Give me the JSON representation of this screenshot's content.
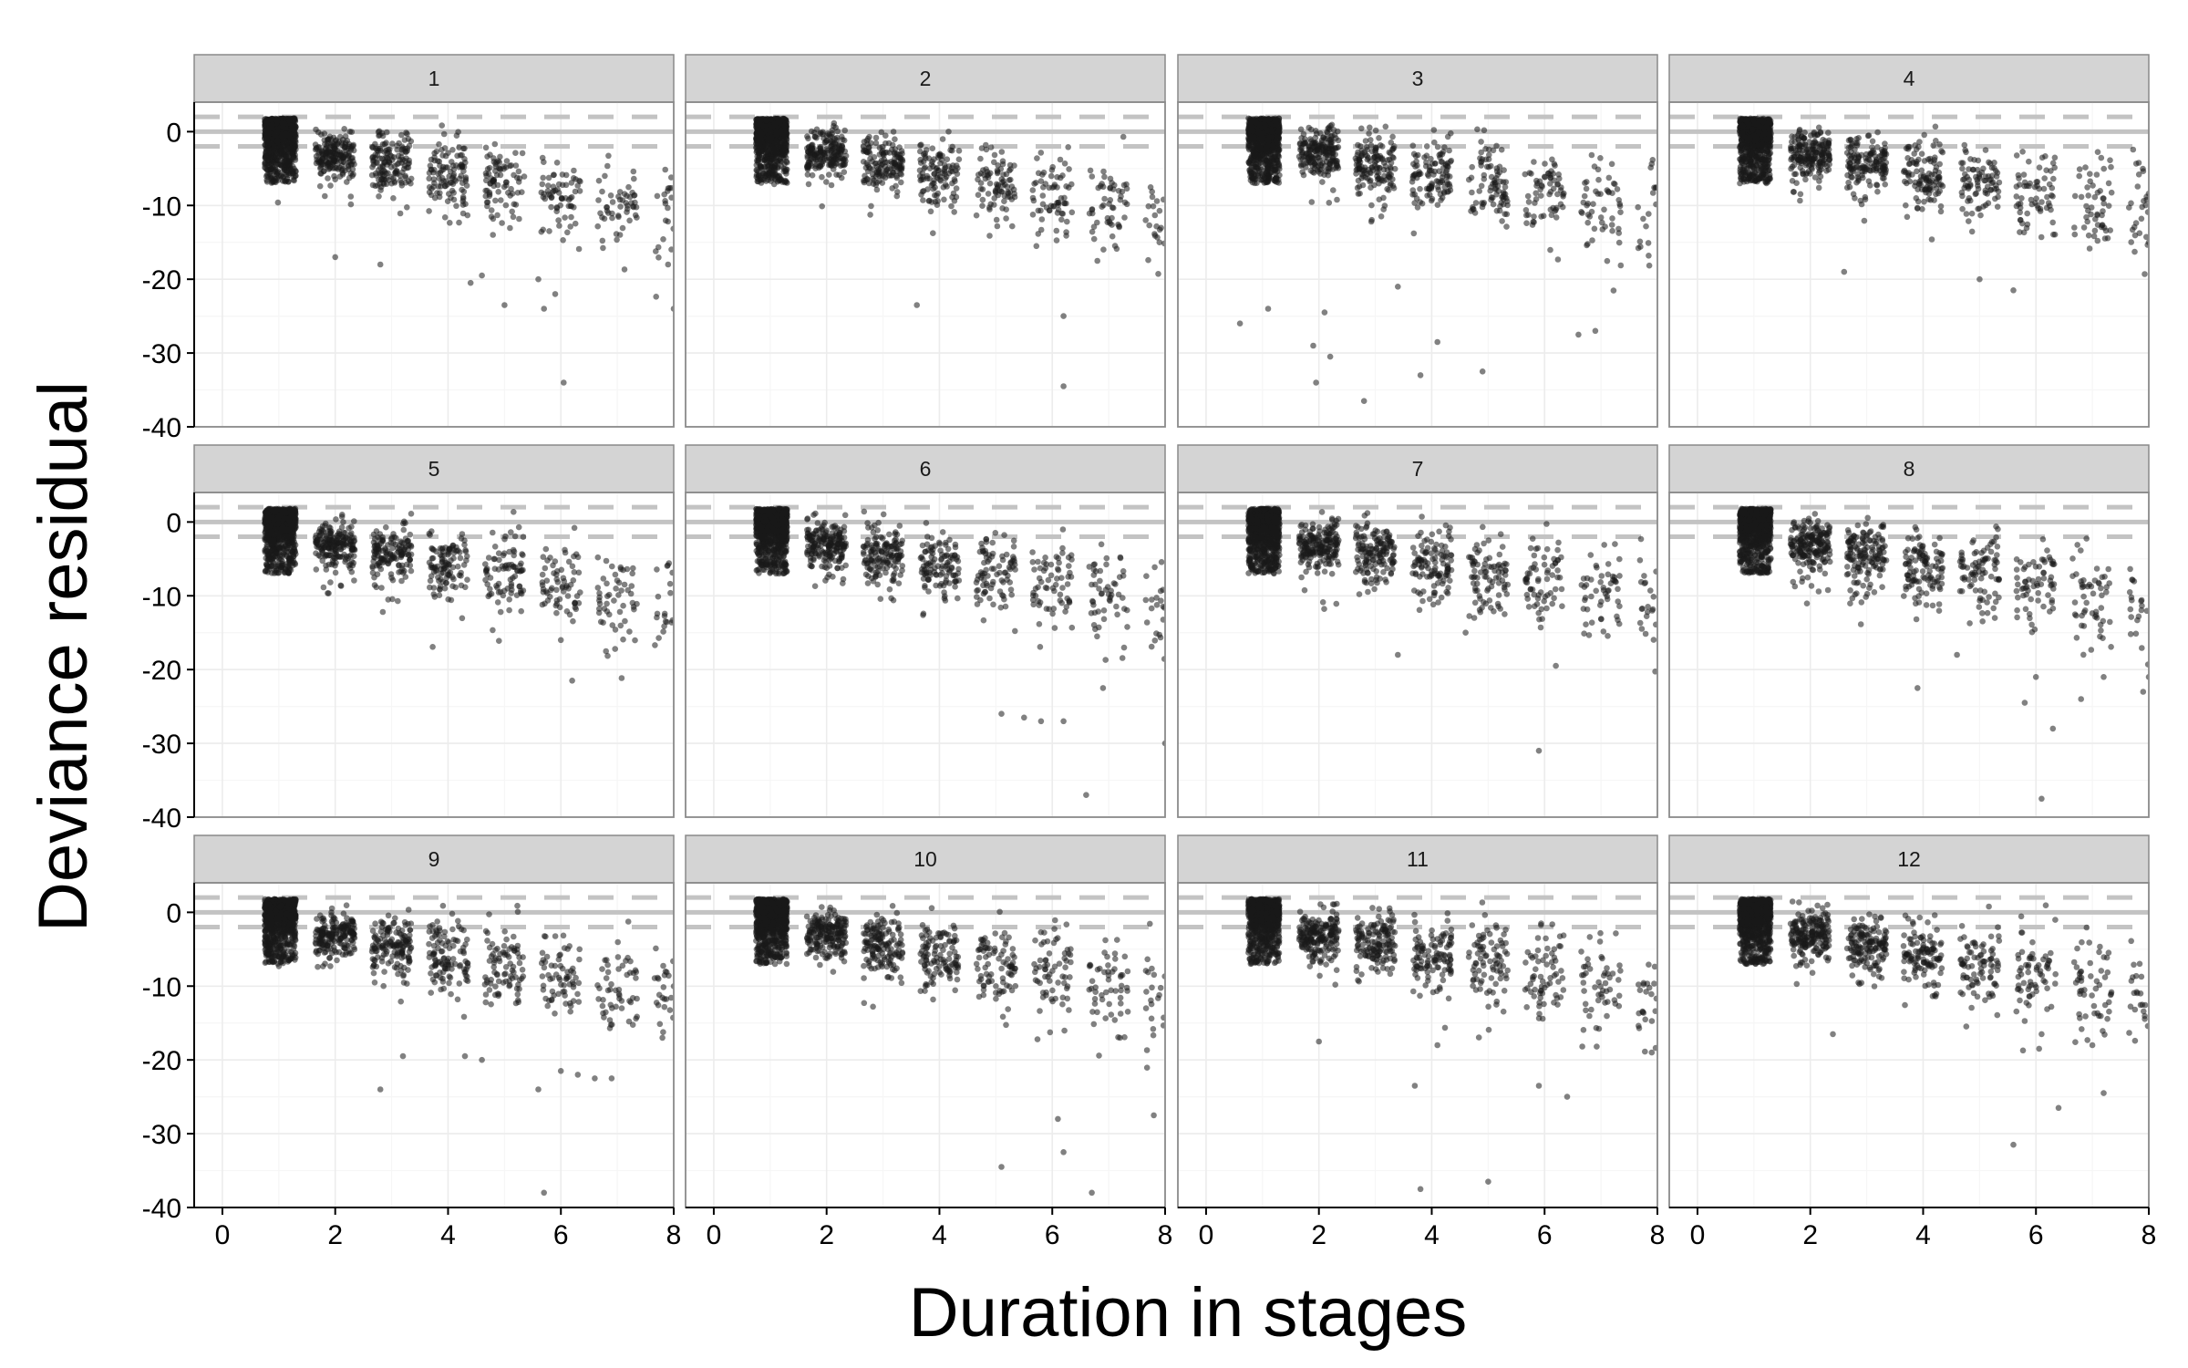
{
  "chart_data": {
    "type": "scatter",
    "xlabel": "Duration in stages",
    "ylabel": "Deviance residual",
    "xlim": [
      -0.5,
      8
    ],
    "ylim": [
      -40,
      4
    ],
    "x_ticks": [
      "0",
      "2",
      "4",
      "6",
      "8"
    ],
    "y_ticks": [
      "0",
      "-10",
      "-20",
      "-30",
      "-40"
    ],
    "x_tick_values": [
      0,
      2,
      4,
      6,
      8
    ],
    "y_tick_values": [
      0,
      -10,
      -20,
      -30,
      -40
    ],
    "reference_lines": {
      "solid": [
        0
      ],
      "dashed": [
        -2,
        2
      ]
    },
    "grid": true,
    "layout": {
      "rows": 3,
      "cols": 4
    },
    "colors": {
      "strip_fill": "#d4d4d4",
      "strip_border": "#8a8a8a",
      "panel_border": "#8a8a8a",
      "grid_major": "#ececec",
      "grid_minor": "#f6f6f6",
      "reference_line": "#c3c3c3",
      "point": "#1a1a1a"
    },
    "point_opacity": 0.55,
    "panels": [
      {
        "title": "1",
        "outliers": [
          [
            2.0,
            -17
          ],
          [
            2.8,
            -18
          ],
          [
            4.4,
            -20.5
          ],
          [
            4.6,
            -19.5
          ],
          [
            5.0,
            -23.5
          ],
          [
            5.6,
            -20
          ],
          [
            5.7,
            -24
          ],
          [
            5.9,
            -22
          ],
          [
            6.05,
            -34
          ],
          [
            7.9,
            -18
          ],
          [
            8.0,
            -24
          ]
        ]
      },
      {
        "title": "2",
        "outliers": [
          [
            3.6,
            -23.5
          ],
          [
            6.2,
            -25
          ],
          [
            6.2,
            -34.5
          ],
          [
            6.8,
            -17.5
          ],
          [
            7.9,
            -15
          ]
        ]
      },
      {
        "title": "3",
        "outliers": [
          [
            0.6,
            -26
          ],
          [
            1.1,
            -24
          ],
          [
            1.9,
            -29
          ],
          [
            1.95,
            -34
          ],
          [
            2.2,
            -30.5
          ],
          [
            2.1,
            -24.5
          ],
          [
            2.8,
            -36.5
          ],
          [
            3.4,
            -21
          ],
          [
            3.8,
            -33
          ],
          [
            4.1,
            -28.5
          ],
          [
            4.9,
            -32.5
          ],
          [
            6.6,
            -27.5
          ],
          [
            6.9,
            -27
          ]
        ]
      },
      {
        "title": "4",
        "outliers": [
          [
            2.6,
            -19
          ],
          [
            5.0,
            -20
          ],
          [
            5.6,
            -21.5
          ],
          [
            8.0,
            -15
          ]
        ]
      },
      {
        "title": "5",
        "outliers": [
          [
            6.2,
            -21.5
          ],
          [
            6.0,
            -16
          ],
          [
            6.8,
            -17.5
          ]
        ]
      },
      {
        "title": "6",
        "outliers": [
          [
            5.1,
            -26
          ],
          [
            5.5,
            -26.5
          ],
          [
            5.8,
            -27
          ],
          [
            6.2,
            -27
          ],
          [
            6.6,
            -37
          ],
          [
            6.9,
            -22.5
          ],
          [
            8.0,
            -30
          ]
        ]
      },
      {
        "title": "7",
        "outliers": [
          [
            3.4,
            -18
          ],
          [
            5.9,
            -31
          ],
          [
            6.2,
            -19.5
          ],
          [
            4.6,
            -15
          ]
        ]
      },
      {
        "title": "8",
        "outliers": [
          [
            3.9,
            -22.5
          ],
          [
            4.6,
            -18
          ],
          [
            5.8,
            -24.5
          ],
          [
            6.0,
            -21
          ],
          [
            6.1,
            -37.5
          ],
          [
            6.3,
            -28
          ],
          [
            6.8,
            -24
          ],
          [
            7.2,
            -21
          ],
          [
            7.9,
            -23
          ],
          [
            8.0,
            -21
          ]
        ]
      },
      {
        "title": "9",
        "outliers": [
          [
            2.8,
            -24
          ],
          [
            3.2,
            -19.5
          ],
          [
            4.3,
            -19.5
          ],
          [
            4.6,
            -20
          ],
          [
            5.6,
            -24
          ],
          [
            5.7,
            -38
          ],
          [
            6.0,
            -21.5
          ],
          [
            6.3,
            -22
          ],
          [
            6.6,
            -22.5
          ],
          [
            6.9,
            -22.5
          ],
          [
            7.8,
            -17
          ]
        ]
      },
      {
        "title": "10",
        "outliers": [
          [
            5.1,
            -34.5
          ],
          [
            6.1,
            -28
          ],
          [
            6.2,
            -32.5
          ],
          [
            6.7,
            -38
          ],
          [
            7.8,
            -27.5
          ],
          [
            7.2,
            -17
          ]
        ]
      },
      {
        "title": "11",
        "outliers": [
          [
            2.0,
            -17.5
          ],
          [
            3.7,
            -23.5
          ],
          [
            3.8,
            -37.5
          ],
          [
            4.1,
            -18
          ],
          [
            5.0,
            -36.5
          ],
          [
            5.9,
            -23.5
          ],
          [
            6.4,
            -25
          ],
          [
            7.9,
            -19
          ]
        ]
      },
      {
        "title": "12",
        "outliers": [
          [
            2.4,
            -16.5
          ],
          [
            5.6,
            -31.5
          ],
          [
            6.1,
            -16.5
          ],
          [
            6.4,
            -26.5
          ],
          [
            7.2,
            -24.5
          ],
          [
            7.0,
            -18
          ]
        ]
      }
    ],
    "main_cloud_note": "Each panel: dense cluster of residuals between about -10 and 2 near duration 1, with the centre of the residuals falling roughly linearly to about -11 at duration 8 and increasing spread."
  }
}
